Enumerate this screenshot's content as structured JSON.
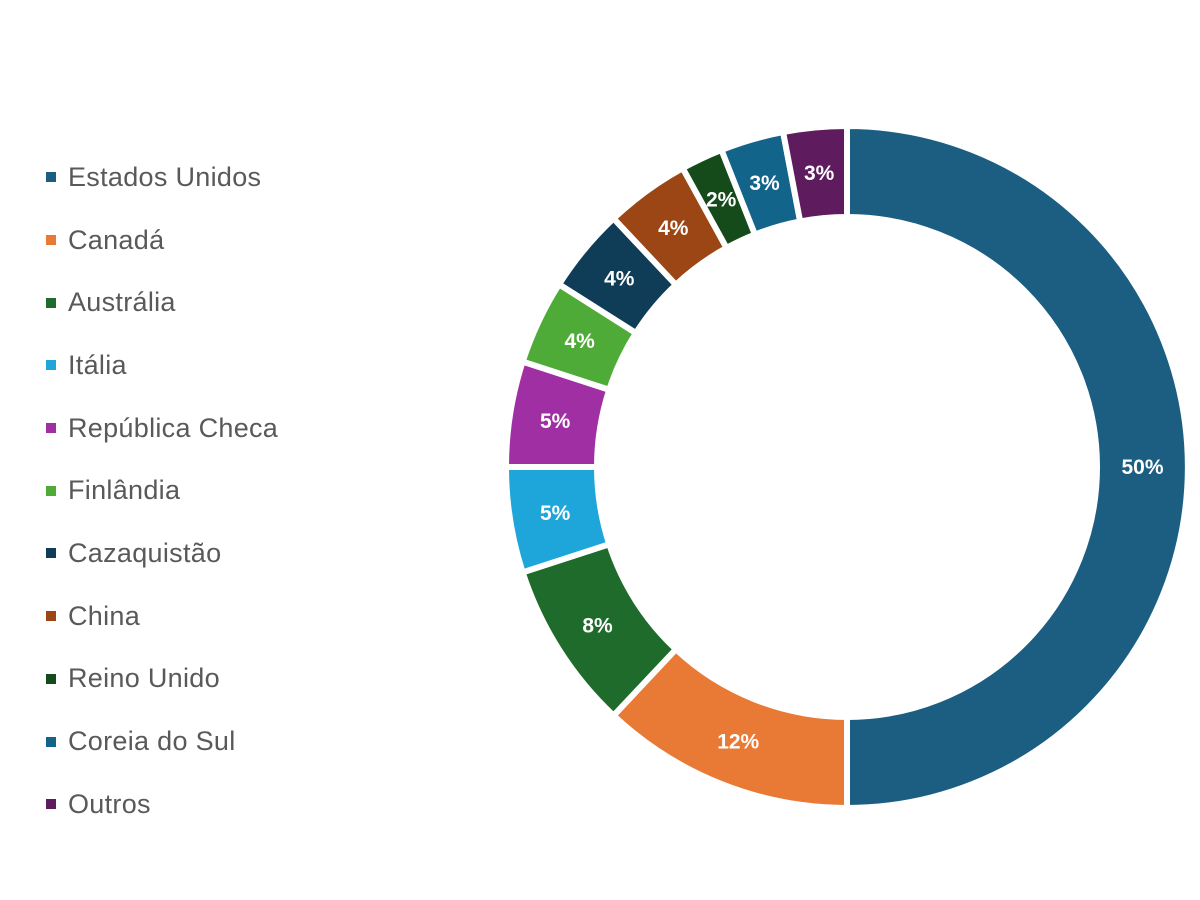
{
  "chart_data": {
    "type": "pie",
    "variant": "donut",
    "title": "",
    "start": "top",
    "direction": "clockwise",
    "legend_position": "left",
    "categories": [
      "Estados Unidos",
      "Canadá",
      "Austrália",
      "Itália",
      "República Checa",
      "Finlândia",
      "Cazaquistão",
      "China",
      "Reino Unido",
      "Coreia do Sul",
      "Outros"
    ],
    "values": [
      50,
      12,
      8,
      5,
      5,
      4,
      4,
      4,
      2,
      3,
      3
    ],
    "labels": [
      "50%",
      "12%",
      "8%",
      "5%",
      "5%",
      "4%",
      "4%",
      "4%",
      "2%",
      "3%",
      "3%"
    ],
    "colors": [
      "#1b5e82",
      "#e97a35",
      "#1f6b2b",
      "#1ea6da",
      "#a02fa3",
      "#4fab38",
      "#0f3c57",
      "#9b4614",
      "#154a1a",
      "#13648a",
      "#5e1c5e"
    ]
  }
}
